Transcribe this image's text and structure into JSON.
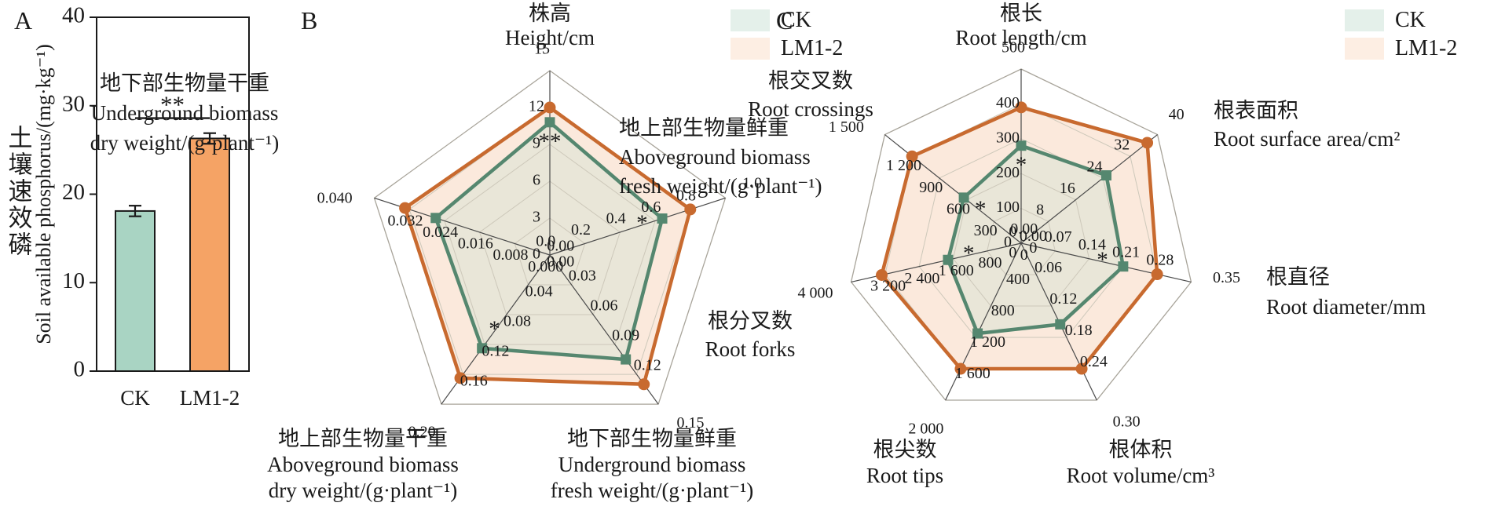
{
  "figure": {
    "background": "#ffffff",
    "text_color": "#1a1a1a",
    "panel_labels": {
      "a": "A",
      "b": "B",
      "c": "C"
    },
    "legend": {
      "items": [
        {
          "label": "CK",
          "color": "#e4f0ea"
        },
        {
          "label": "LM1-2",
          "color": "#fdeee3"
        }
      ]
    }
  },
  "chart_data": [
    {
      "id": "A",
      "type": "bar",
      "title_zh": "土壤速效磷",
      "ylabel": "Soil available phosphorus/(mg·kg⁻¹)",
      "categories": [
        "CK",
        "LM1-2"
      ],
      "values": [
        18.1,
        26.3
      ],
      "errors": [
        0.6,
        0.6
      ],
      "ylim": [
        0,
        40
      ],
      "yticks": [
        "0",
        "10",
        "20",
        "30",
        "40"
      ],
      "bar_colors": [
        "#a9d4c3",
        "#f5a365"
      ],
      "bar_edge_color": "#1a1a1a",
      "significance": {
        "label": "**",
        "line_y": 28.6
      }
    },
    {
      "id": "B",
      "type": "radar",
      "grid": "pentagon, 5 rings",
      "series": [
        {
          "name": "CK",
          "line_color": "#55876f",
          "fill_color": "#e9e6d8",
          "marker": "square"
        },
        {
          "name": "LM1-2",
          "line_color": "#c86a2f",
          "fill_color": "#fbe9dc",
          "marker": "circle"
        }
      ],
      "axes": [
        {
          "label_zh": "株高",
          "label_en": [
            "Height/cm"
          ],
          "max": 15,
          "ticks": [
            "0",
            "3",
            "6",
            "9",
            "12",
            "15"
          ],
          "ck": 10.8,
          "lm": 12.0,
          "sig": "**"
        },
        {
          "label_zh": "地上部生物量鲜重",
          "label_en": [
            "Aboveground biomass",
            "fresh weight/(g·plant⁻¹)"
          ],
          "max": 1.0,
          "ticks": [
            "0.0",
            "0.2",
            "0.4",
            "0.6",
            "0.8",
            "1.0"
          ],
          "ck": 0.64,
          "lm": 0.8,
          "sig": "*"
        },
        {
          "label_zh": "地下部生物量鲜重",
          "label_en": [
            "Underground biomass",
            "fresh weight/(g·plant⁻¹)"
          ],
          "max": 0.15,
          "ticks": [
            "0.00",
            "0.03",
            "0.06",
            "0.09",
            "0.12",
            "0.15"
          ],
          "ck": 0.105,
          "lm": 0.13,
          "sig": ""
        },
        {
          "label_zh": "地上部生物量干重",
          "label_en": [
            "Aboveground biomass",
            "dry weight/(g·plant⁻¹)"
          ],
          "max": 0.2,
          "ticks": [
            "0.00",
            "0.04",
            "0.08",
            "0.12",
            "0.16",
            "0.20"
          ],
          "ck": 0.125,
          "lm": 0.165,
          "sig": "*"
        },
        {
          "label_zh": "地下部生物量干重",
          "label_en": [
            "Underground biomass",
            "dry weight/(g·plant⁻¹)"
          ],
          "max": 0.04,
          "ticks": [
            "0.000",
            "0.008",
            "0.016",
            "0.024",
            "0.032",
            "0.040"
          ],
          "ck": 0.026,
          "lm": 0.033,
          "sig": ""
        }
      ]
    },
    {
      "id": "C",
      "type": "radar",
      "grid": "heptagon, 5 rings",
      "series": [
        {
          "name": "CK",
          "line_color": "#55876f",
          "fill_color": "#e9e6d8",
          "marker": "square"
        },
        {
          "name": "LM1-2",
          "line_color": "#c86a2f",
          "fill_color": "#fbe9dc",
          "marker": "circle"
        }
      ],
      "axes": [
        {
          "label_zh": "根长",
          "label_en": [
            "Root length/cm"
          ],
          "max": 500,
          "ticks": [
            "0",
            "100",
            "200",
            "300",
            "400",
            "500"
          ],
          "ck": 280,
          "lm": 390,
          "sig": "*"
        },
        {
          "label_zh": "根表面积",
          "label_en": [
            "Root surface area/cm²"
          ],
          "max": 40,
          "ticks": [
            "0",
            "8",
            "16",
            "24",
            "32",
            "40"
          ],
          "ck": 25,
          "lm": 37,
          "sig": ""
        },
        {
          "label_zh": "根直径",
          "label_en": [
            "Root diameter/mm"
          ],
          "max": 0.35,
          "ticks": [
            "0.00",
            "0.07",
            "0.14",
            "0.21",
            "0.28",
            "0.35"
          ],
          "ck": 0.21,
          "lm": 0.28,
          "sig": "*"
        },
        {
          "label_zh": "根体积",
          "label_en": [
            "Root volume/cm³"
          ],
          "max": 0.3,
          "ticks": [
            "0.00",
            "0.06",
            "0.12",
            "0.18",
            "0.24",
            "0.30"
          ],
          "ck": 0.155,
          "lm": 0.24,
          "sig": ""
        },
        {
          "label_zh": "根尖数",
          "label_en": [
            "Root tips"
          ],
          "max": 2000,
          "ticks": [
            "0",
            "400",
            "800",
            "1 200",
            "1 600",
            "2 000"
          ],
          "ck": 1150,
          "lm": 1600,
          "sig": ""
        },
        {
          "label_zh": "根分叉数",
          "label_en": [
            "Root forks"
          ],
          "max": 4000,
          "ticks": [
            "0",
            "800",
            "1 600",
            "2 400",
            "3 200",
            "4 000"
          ],
          "ck": 1720,
          "lm": 3280,
          "sig": "*"
        },
        {
          "label_zh": "根交叉数",
          "label_en": [
            "Root crossings"
          ],
          "max": 1500,
          "ticks": [
            "0",
            "300",
            "600",
            "900",
            "1 200",
            "1 500"
          ],
          "ck": 630,
          "lm": 1200,
          "sig": "*"
        }
      ]
    }
  ]
}
